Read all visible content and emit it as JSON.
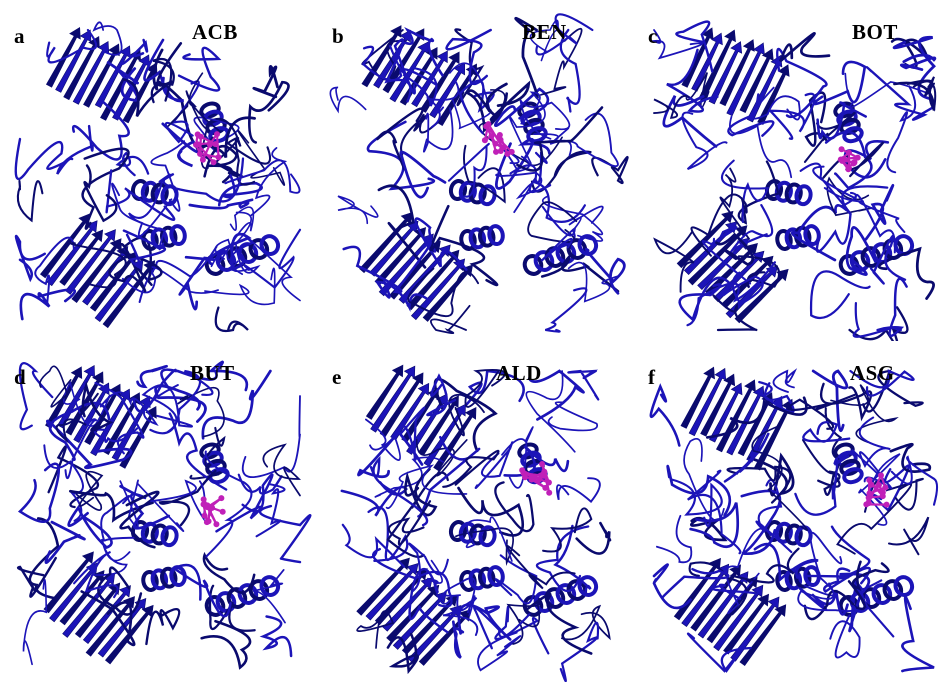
{
  "panels": [
    {
      "letter": "a",
      "label": "ACB"
    },
    {
      "letter": "b",
      "label": "BEN"
    },
    {
      "letter": "c",
      "label": "BOT"
    },
    {
      "letter": "d",
      "label": "BUT"
    },
    {
      "letter": "e",
      "label": "ALD"
    },
    {
      "letter": "f",
      "label": "ASG"
    }
  ],
  "colors": {
    "protein": "#1c14b8",
    "protein_dark": "#0a0a6e",
    "ligand": "#c020b8"
  }
}
